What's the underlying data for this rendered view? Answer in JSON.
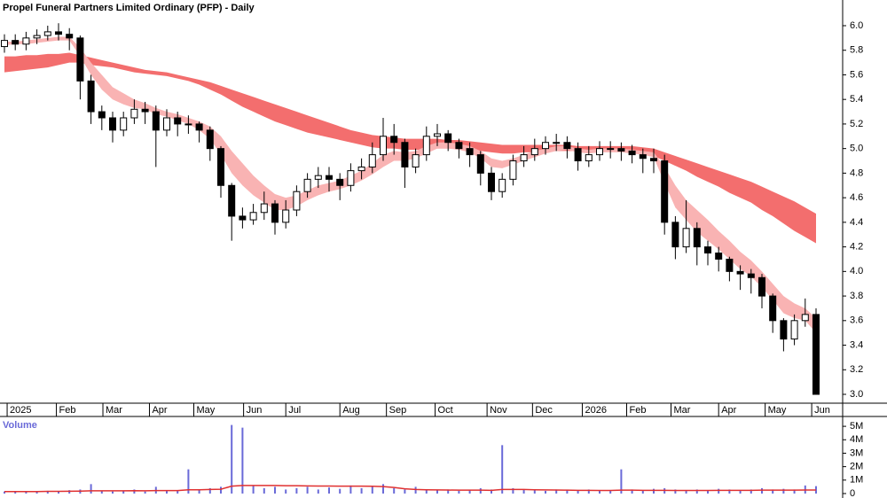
{
  "chart_data": [
    {
      "type": "candlestick",
      "title": "Propel Funeral Partners Limited Ordinary (PFP) - Daily",
      "xlim": [
        -0.41,
        77.46
      ],
      "xticks": [
        {
          "value": 0.25,
          "label": "2025"
        },
        {
          "value": 4.8,
          "label": "Feb"
        },
        {
          "value": 9.1,
          "label": "Mar"
        },
        {
          "value": 13.4,
          "label": "Apr"
        },
        {
          "value": 17.5,
          "label": "May"
        },
        {
          "value": 22.1,
          "label": "Jun"
        },
        {
          "value": 26,
          "label": "Jul"
        },
        {
          "value": 31,
          "label": "Aug"
        },
        {
          "value": 35.3,
          "label": "Sep"
        },
        {
          "value": 39.8,
          "label": "Oct"
        },
        {
          "value": 44.6,
          "label": "Nov"
        },
        {
          "value": 48.8,
          "label": "Dec"
        },
        {
          "value": 53.4,
          "label": "2026"
        },
        {
          "value": 57.5,
          "label": "Feb"
        },
        {
          "value": 61.6,
          "label": "Mar"
        },
        {
          "value": 66,
          "label": "Apr"
        },
        {
          "value": 70.3,
          "label": "May"
        },
        {
          "value": 74.6,
          "label": "Jun"
        }
      ],
      "ylim": [
        2.928,
        6.209
      ],
      "yticks": [
        {
          "value": 3,
          "label": "3.0"
        },
        3.2,
        3.4,
        3.6,
        3.8,
        {
          "value": 4,
          "label": "4.0"
        },
        4.2,
        4.4,
        4.6,
        4.8,
        {
          "value": 5,
          "label": "5.0"
        },
        5.2,
        5.4,
        5.6,
        5.8,
        {
          "value": 6,
          "label": "6.0"
        }
      ],
      "up_color": "#ffffff",
      "down_color": "#000000",
      "open": [
        5.83,
        5.88,
        5.85,
        5.9,
        5.92,
        5.95,
        5.93,
        5.9,
        5.55,
        5.3,
        5.25,
        5.15,
        5.25,
        5.32,
        5.3,
        5.15,
        5.25,
        5.2,
        5.2,
        5.15,
        5.0,
        4.7,
        4.45,
        4.42,
        4.48,
        4.55,
        4.4,
        4.5,
        4.65,
        4.75,
        4.78,
        4.75,
        4.7,
        4.82,
        4.85,
        4.95,
        5.1,
        5.05,
        4.85,
        4.95,
        5.1,
        5.12,
        5.05,
        5.0,
        4.95,
        4.8,
        4.65,
        4.75,
        4.9,
        4.95,
        5.0,
        5.05,
        5.05,
        5.0,
        4.9,
        4.95,
        5.0,
        5.0,
        4.98,
        4.95,
        4.92,
        4.9,
        4.4,
        4.2,
        4.35,
        4.2,
        4.15,
        4.1,
        4.0,
        3.98,
        3.95,
        3.8,
        3.6,
        3.45,
        3.6,
        3.65
      ],
      "high": [
        5.93,
        5.93,
        5.95,
        5.97,
        6.0,
        6.02,
        5.98,
        5.92,
        5.6,
        5.35,
        5.3,
        5.3,
        5.4,
        5.38,
        5.35,
        5.32,
        5.3,
        5.27,
        5.22,
        5.18,
        5.02,
        4.72,
        4.52,
        4.55,
        4.65,
        4.58,
        4.58,
        4.7,
        4.8,
        4.85,
        4.85,
        4.8,
        4.88,
        4.92,
        5.05,
        5.25,
        5.2,
        5.08,
        5.0,
        5.18,
        5.2,
        5.15,
        5.08,
        5.05,
        4.98,
        4.85,
        4.8,
        4.95,
        5.02,
        5.08,
        5.1,
        5.12,
        5.1,
        5.05,
        5.02,
        5.06,
        5.06,
        5.05,
        5.03,
        5.0,
        5.0,
        4.95,
        4.45,
        4.58,
        4.4,
        4.25,
        4.2,
        4.12,
        4.05,
        4.02,
        3.98,
        3.82,
        3.62,
        3.65,
        3.78,
        3.7
      ],
      "low": [
        5.78,
        5.8,
        5.8,
        5.85,
        5.88,
        5.88,
        5.8,
        5.4,
        5.2,
        5.15,
        5.05,
        5.1,
        5.2,
        5.2,
        4.85,
        5.1,
        5.1,
        5.12,
        5.05,
        4.9,
        4.6,
        4.25,
        4.35,
        4.38,
        4.42,
        4.3,
        4.35,
        4.45,
        4.6,
        4.68,
        4.65,
        4.58,
        4.65,
        4.75,
        4.8,
        4.9,
        4.95,
        4.68,
        4.8,
        4.9,
        5.02,
        4.98,
        4.92,
        4.85,
        4.7,
        4.58,
        4.6,
        4.7,
        4.85,
        4.9,
        4.95,
        4.98,
        4.92,
        4.82,
        4.85,
        4.9,
        4.92,
        4.9,
        4.88,
        4.8,
        4.8,
        4.3,
        4.1,
        4.15,
        4.05,
        4.05,
        4.0,
        3.92,
        3.85,
        3.82,
        3.7,
        3.5,
        3.35,
        3.4,
        3.55,
        3.0
      ],
      "close": [
        5.88,
        5.85,
        5.9,
        5.92,
        5.95,
        5.93,
        5.9,
        5.55,
        5.3,
        5.25,
        5.15,
        5.25,
        5.32,
        5.3,
        5.15,
        5.25,
        5.2,
        5.2,
        5.15,
        5.0,
        4.7,
        4.45,
        4.42,
        4.48,
        4.55,
        4.4,
        4.5,
        4.65,
        4.75,
        4.78,
        4.75,
        4.7,
        4.82,
        4.85,
        4.95,
        5.1,
        5.05,
        4.85,
        4.95,
        5.1,
        5.12,
        5.05,
        5.0,
        4.95,
        4.8,
        4.65,
        4.75,
        4.9,
        4.95,
        5.0,
        5.05,
        5.05,
        5.0,
        4.9,
        4.95,
        5.0,
        5.0,
        4.98,
        4.95,
        4.92,
        4.9,
        4.4,
        4.2,
        4.35,
        4.2,
        4.15,
        4.1,
        4.0,
        3.98,
        3.95,
        3.8,
        3.6,
        3.45,
        3.6,
        3.65,
        3.0
      ],
      "bands": [
        {
          "color": "#f36e6e",
          "upper": [
            5.75,
            5.75,
            5.76,
            5.76,
            5.77,
            5.77,
            5.78,
            5.76,
            5.74,
            5.72,
            5.7,
            5.68,
            5.66,
            5.64,
            5.63,
            5.62,
            5.6,
            5.58,
            5.56,
            5.54,
            5.51,
            5.48,
            5.45,
            5.42,
            5.39,
            5.36,
            5.33,
            5.3,
            5.27,
            5.24,
            5.21,
            5.18,
            5.15,
            5.13,
            5.11,
            5.1,
            5.09,
            5.08,
            5.08,
            5.08,
            5.08,
            5.07,
            5.07,
            5.06,
            5.05,
            5.04,
            5.03,
            5.03,
            5.03,
            5.03,
            5.03,
            5.03,
            5.03,
            5.02,
            5.02,
            5.02,
            5.02,
            5.02,
            5.02,
            5.01,
            5.0,
            4.97,
            4.94,
            4.91,
            4.88,
            4.85,
            4.82,
            4.79,
            4.76,
            4.73,
            4.69,
            4.65,
            4.61,
            4.57,
            4.52,
            4.47
          ],
          "lower": [
            5.62,
            5.63,
            5.64,
            5.65,
            5.66,
            5.68,
            5.7,
            5.7,
            5.68,
            5.67,
            5.66,
            5.64,
            5.62,
            5.61,
            5.6,
            5.59,
            5.57,
            5.55,
            5.52,
            5.48,
            5.44,
            5.39,
            5.34,
            5.3,
            5.26,
            5.22,
            5.19,
            5.16,
            5.13,
            5.11,
            5.09,
            5.07,
            5.05,
            5.03,
            5.01,
            5.0,
            5.0,
            4.99,
            4.99,
            4.99,
            5.0,
            5.0,
            5.0,
            4.99,
            4.98,
            4.97,
            4.96,
            4.96,
            4.97,
            4.97,
            4.98,
            4.98,
            4.98,
            4.98,
            4.98,
            4.98,
            4.98,
            4.98,
            4.97,
            4.96,
            4.94,
            4.9,
            4.86,
            4.82,
            4.77,
            4.73,
            4.69,
            4.64,
            4.6,
            4.56,
            4.5,
            4.45,
            4.39,
            4.33,
            4.28,
            4.23
          ]
        },
        {
          "color": "#f9b3b3",
          "upper": [
            5.87,
            5.87,
            5.88,
            5.89,
            5.9,
            5.91,
            5.91,
            5.82,
            5.7,
            5.6,
            5.5,
            5.45,
            5.4,
            5.37,
            5.33,
            5.3,
            5.28,
            5.25,
            5.22,
            5.18,
            5.1,
            4.98,
            4.88,
            4.78,
            4.7,
            4.63,
            4.6,
            4.62,
            4.66,
            4.7,
            4.72,
            4.74,
            4.78,
            4.82,
            4.88,
            4.95,
            4.98,
            4.97,
            4.98,
            5.02,
            5.05,
            5.05,
            5.04,
            5.02,
            4.98,
            4.92,
            4.9,
            4.92,
            4.95,
            4.98,
            5.0,
            5.02,
            5.02,
            5.0,
            4.99,
            5.0,
            5.0,
            5.0,
            4.99,
            4.98,
            4.97,
            4.85,
            4.7,
            4.58,
            4.5,
            4.42,
            4.33,
            4.25,
            4.16,
            4.09,
            4.0,
            3.9,
            3.8,
            3.74,
            3.7,
            3.62
          ],
          "lower": [
            5.84,
            5.85,
            5.85,
            5.86,
            5.87,
            5.88,
            5.88,
            5.75,
            5.6,
            5.48,
            5.4,
            5.36,
            5.33,
            5.32,
            5.28,
            5.26,
            5.23,
            5.2,
            5.15,
            5.08,
            4.95,
            4.8,
            4.7,
            4.62,
            4.56,
            4.5,
            4.5,
            4.53,
            4.58,
            4.62,
            4.65,
            4.67,
            4.7,
            4.74,
            4.79,
            4.85,
            4.9,
            4.9,
            4.92,
            4.96,
            5.0,
            5.0,
            4.99,
            4.97,
            4.92,
            4.85,
            4.84,
            4.87,
            4.9,
            4.93,
            4.96,
            4.98,
            4.99,
            4.97,
            4.96,
            4.97,
            4.97,
            4.97,
            4.96,
            4.95,
            4.93,
            4.72,
            4.52,
            4.42,
            4.32,
            4.25,
            4.18,
            4.1,
            4.02,
            3.96,
            3.87,
            3.77,
            3.66,
            3.62,
            3.6,
            3.5
          ]
        }
      ]
    },
    {
      "type": "bar",
      "title": "Volume",
      "color": "#6a6ad8",
      "ylim": [
        -0.2,
        5.6
      ],
      "yticks": [
        0,
        {
          "value": 1,
          "label": "1M"
        },
        {
          "value": 2,
          "label": "2M"
        },
        {
          "value": 3,
          "label": "3M"
        },
        {
          "value": 4,
          "label": "4M"
        },
        {
          "value": 5,
          "label": "5M"
        }
      ],
      "values": [
        0.15,
        0.12,
        0.18,
        0.1,
        0.2,
        0.15,
        0.25,
        0.3,
        0.7,
        0.2,
        0.15,
        0.2,
        0.3,
        0.15,
        0.5,
        0.2,
        0.25,
        1.8,
        0.3,
        0.4,
        0.5,
        5.1,
        4.9,
        0.6,
        0.4,
        0.5,
        0.3,
        0.4,
        0.5,
        0.3,
        0.45,
        0.35,
        0.6,
        0.4,
        0.5,
        0.7,
        0.4,
        0.3,
        0.5,
        0.3,
        0.25,
        0.3,
        0.2,
        0.25,
        0.4,
        0.3,
        3.6,
        0.4,
        0.3,
        0.25,
        0.2,
        0.3,
        0.25,
        0.2,
        0.3,
        0.2,
        0.25,
        1.8,
        0.3,
        0.2,
        0.35,
        0.4,
        0.3,
        0.25,
        0.3,
        0.2,
        0.35,
        0.3,
        0.25,
        0.3,
        0.4,
        0.3,
        0.35,
        0.3,
        0.6,
        0.55
      ],
      "average": {
        "color": "#e03030",
        "values": [
          0.15,
          0.15,
          0.15,
          0.15,
          0.16,
          0.16,
          0.17,
          0.18,
          0.2,
          0.2,
          0.2,
          0.2,
          0.21,
          0.2,
          0.22,
          0.22,
          0.22,
          0.28,
          0.28,
          0.3,
          0.32,
          0.55,
          0.6,
          0.6,
          0.6,
          0.6,
          0.58,
          0.58,
          0.57,
          0.56,
          0.56,
          0.55,
          0.55,
          0.55,
          0.54,
          0.52,
          0.45,
          0.35,
          0.3,
          0.28,
          0.27,
          0.26,
          0.25,
          0.25,
          0.25,
          0.24,
          0.3,
          0.3,
          0.3,
          0.28,
          0.27,
          0.26,
          0.25,
          0.24,
          0.24,
          0.23,
          0.23,
          0.25,
          0.25,
          0.24,
          0.24,
          0.24,
          0.23,
          0.23,
          0.23,
          0.23,
          0.24,
          0.24,
          0.24,
          0.24,
          0.25,
          0.25,
          0.25,
          0.25,
          0.26,
          0.26
        ]
      }
    }
  ]
}
